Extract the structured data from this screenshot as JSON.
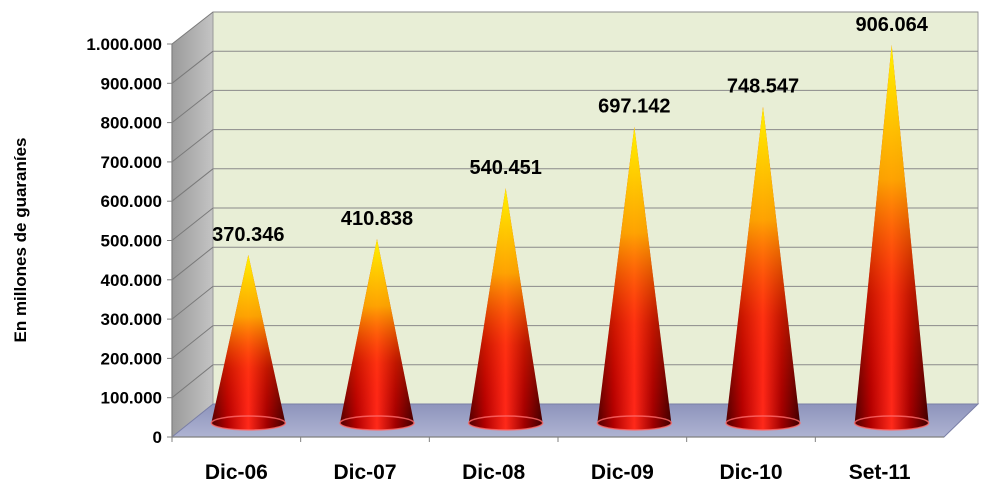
{
  "chart_data": {
    "type": "bar",
    "style": "3d-cone",
    "title": "",
    "xlabel": "",
    "ylabel": "En millones de guaraníes",
    "categories": [
      "Dic-06",
      "Dic-07",
      "Dic-08",
      "Dic-09",
      "Dic-10",
      "Set-11"
    ],
    "values": [
      370346,
      410838,
      540451,
      697142,
      748547,
      906064
    ],
    "value_labels": [
      "370.346",
      "410.838",
      "540.451",
      "697.142",
      "748.547",
      "906.064"
    ],
    "ylim": [
      0,
      1000000
    ],
    "yticks": [
      0,
      100000,
      200000,
      300000,
      400000,
      500000,
      600000,
      700000,
      800000,
      900000,
      1000000
    ],
    "ytick_labels": [
      "0",
      "100.000",
      "200.000",
      "300.000",
      "400.000",
      "500.000",
      "600.000",
      "700.000",
      "800.000",
      "900.000",
      "1.000.000"
    ],
    "grid": true,
    "legend": "none",
    "colors": {
      "wall": "#e8eed6",
      "side_wall": "#a8a8a8",
      "floor": "#9aa0c4",
      "gridline": "#808080",
      "cone_tip": "#ffe600",
      "cone_mid": "#ff7a00",
      "cone_base": "#e60000",
      "cone_shadow": "#5a0000"
    }
  }
}
